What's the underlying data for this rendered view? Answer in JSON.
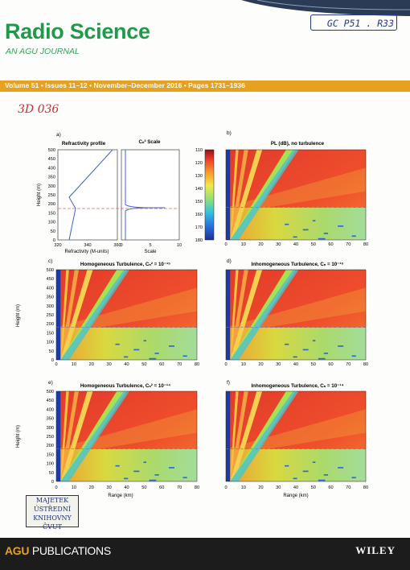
{
  "cover": {
    "title": "Radio Science",
    "subtitle": "AN AGU JOURNAL",
    "issue": "Volume 51 • Issues 11–12 • November–December 2016 • Pages 1731–1936",
    "hand_note_top": "GC P51 . R33",
    "hand_note_left": "3D 036",
    "stamp_lines": [
      "MAJETEK",
      "ÚSTŘEDNÍ KNIHOVNY",
      "ČVUT"
    ],
    "footer_left_brand": "AGU",
    "footer_left_rest": "PUBLICATIONS",
    "footer_right": "WILEY",
    "colors": {
      "title_green": "#1f9a4a",
      "band_orange": "#e8a020",
      "footer_dark": "#1c1c1c"
    }
  },
  "figure": {
    "panel_a": {
      "letter": "a)",
      "left_title": "Refractivity profile",
      "right_title": "Cₙ² Scale",
      "ylabel": "Height (m)",
      "left_xlabel": "Refractivity (M-units)",
      "right_xlabel": "Scale",
      "yticks": [
        "500",
        "450",
        "400",
        "350",
        "300",
        "250",
        "200",
        "150",
        "100",
        "50",
        "0"
      ],
      "left_xticks": [
        "320",
        "340",
        "360"
      ],
      "right_xticks": [
        "0",
        "5",
        "10"
      ]
    },
    "panel_b": {
      "letter": "b)",
      "title": "PL (dB), no turbulence"
    },
    "panel_c": {
      "letter": "c)",
      "title": "Homogeneous Turbulence, Cₙ² = 10⁻¹⁵"
    },
    "panel_d": {
      "letter": "d)",
      "title": "Inhomogeneous Turbulence, Cₙ = 10⁻¹⁵"
    },
    "panel_e": {
      "letter": "e)",
      "title": "Homogeneous Turbulence, Cₙ² = 10⁻¹⁴"
    },
    "panel_f": {
      "letter": "f)",
      "title": "Inhomogeneous Turbulence, Cₙ = 10⁻¹⁴"
    },
    "colorbar_ticks": [
      "110",
      "120",
      "130",
      "140",
      "150",
      "160",
      "170",
      "180"
    ],
    "heat_yticks": [
      "500",
      "450",
      "400",
      "350",
      "300",
      "250",
      "200",
      "150",
      "100",
      "50",
      "0"
    ],
    "heat_xticks": [
      "0",
      "10",
      "20",
      "30",
      "40",
      "50",
      "60",
      "70",
      "80"
    ],
    "heat_ylabel": "Height (m)",
    "heat_xlabel": "Range (km)",
    "e_xlabel": "Range (km)"
  }
}
